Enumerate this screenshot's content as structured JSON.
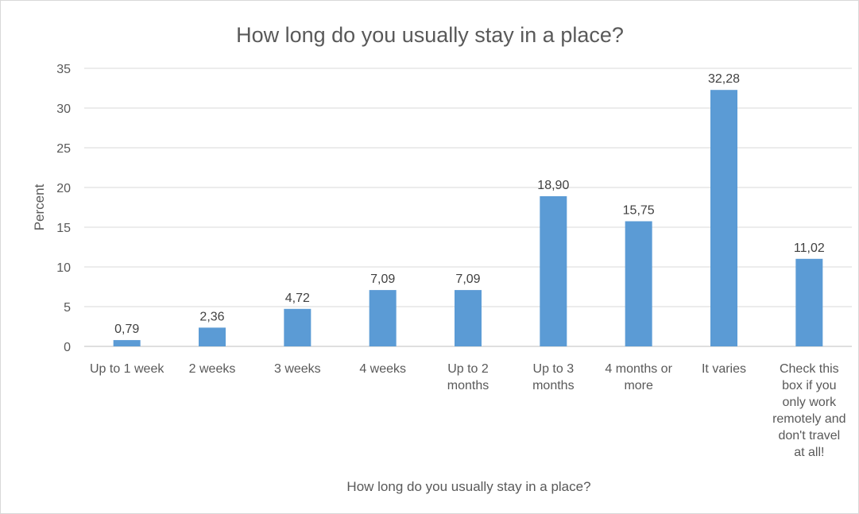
{
  "chart_data": {
    "type": "bar",
    "title": "How long do you usually stay in a place?",
    "xlabel": "How long do you usually stay in a place?",
    "ylabel": "Percent",
    "ylim": [
      0,
      35
    ],
    "yticks": [
      0,
      5,
      10,
      15,
      20,
      25,
      30,
      35
    ],
    "grid": true,
    "legend": "none",
    "bar_color": "#5b9bd5",
    "categories": [
      [
        "Up to 1 week"
      ],
      [
        "2 weeks"
      ],
      [
        "3 weeks"
      ],
      [
        "4 weeks"
      ],
      [
        "Up to 2",
        "months"
      ],
      [
        "Up to 3",
        "months"
      ],
      [
        "4 months or",
        "more"
      ],
      [
        "It varies"
      ],
      [
        "Check this",
        "box if you",
        "only work",
        "remotely and",
        "don't travel",
        "at all!"
      ]
    ],
    "values": [
      0.79,
      2.36,
      4.72,
      7.09,
      7.09,
      18.9,
      15.75,
      32.28,
      11.02
    ],
    "data_labels": [
      "0,79",
      "2,36",
      "4,72",
      "7,09",
      "7,09",
      "18,90",
      "15,75",
      "32,28",
      "11,02"
    ]
  }
}
